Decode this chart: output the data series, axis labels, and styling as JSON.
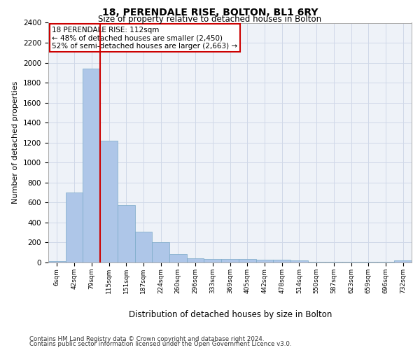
{
  "title1": "18, PERENDALE RISE, BOLTON, BL1 6RY",
  "title2": "Size of property relative to detached houses in Bolton",
  "xlabel": "Distribution of detached houses by size in Bolton",
  "ylabel": "Number of detached properties",
  "bar_labels": [
    "6sqm",
    "42sqm",
    "79sqm",
    "115sqm",
    "151sqm",
    "187sqm",
    "224sqm",
    "260sqm",
    "296sqm",
    "333sqm",
    "369sqm",
    "405sqm",
    "442sqm",
    "478sqm",
    "514sqm",
    "550sqm",
    "587sqm",
    "623sqm",
    "659sqm",
    "696sqm",
    "732sqm"
  ],
  "bar_values": [
    15,
    700,
    1940,
    1220,
    575,
    305,
    200,
    85,
    45,
    38,
    38,
    32,
    28,
    25,
    22,
    5,
    5,
    5,
    5,
    5,
    18
  ],
  "bar_color": "#aec6e8",
  "bar_edge_color": "#7aaac8",
  "ylim": [
    0,
    2400
  ],
  "yticks": [
    0,
    200,
    400,
    600,
    800,
    1000,
    1200,
    1400,
    1600,
    1800,
    2000,
    2200,
    2400
  ],
  "vline_index": 2,
  "vline_color": "#cc0000",
  "annotation_text": "18 PERENDALE RISE: 112sqm\n← 48% of detached houses are smaller (2,450)\n52% of semi-detached houses are larger (2,663) →",
  "annotation_box_color": "#cc0000",
  "footer1": "Contains HM Land Registry data © Crown copyright and database right 2024.",
  "footer2": "Contains public sector information licensed under the Open Government Licence v3.0.",
  "grid_color": "#d0d8e8",
  "background_color": "#eef2f8"
}
